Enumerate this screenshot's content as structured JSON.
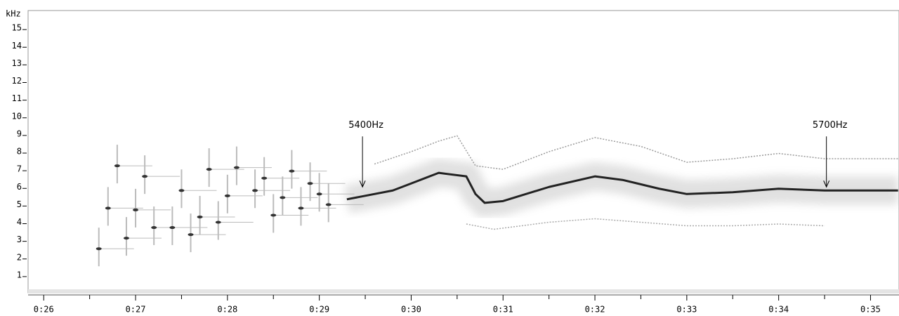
{
  "chart_data": {
    "type": "line",
    "y_label": "kHz",
    "xlim": [
      25.83,
      35.31
    ],
    "ylim": [
      0,
      16
    ],
    "xticks": [
      {
        "value": 26,
        "label": "0:26"
      },
      {
        "value": 27,
        "label": "0:27"
      },
      {
        "value": 28,
        "label": "0:28"
      },
      {
        "value": 29,
        "label": "0:29"
      },
      {
        "value": 30,
        "label": "0:30"
      },
      {
        "value": 31,
        "label": "0:31"
      },
      {
        "value": 32,
        "label": "0:32"
      },
      {
        "value": 33,
        "label": "0:33"
      },
      {
        "value": 34,
        "label": "0:34"
      },
      {
        "value": 35,
        "label": "0:35"
      }
    ],
    "yticks": [
      1,
      2,
      3,
      4,
      5,
      6,
      7,
      8,
      9,
      10,
      11,
      12,
      13,
      14,
      15
    ],
    "series": [
      {
        "color": "#222222",
        "marker": "line",
        "x": [
          29.3,
          29.5,
          29.8,
          30.0,
          30.3,
          30.6,
          30.7,
          30.8,
          31.0,
          31.5,
          32.0,
          32.3,
          32.7,
          33.0,
          33.5,
          34.0,
          34.5,
          35.0,
          35.3
        ],
        "values": [
          5.3,
          5.5,
          5.8,
          6.2,
          6.8,
          6.6,
          5.6,
          5.1,
          5.2,
          6.0,
          6.6,
          6.4,
          5.9,
          5.6,
          5.7,
          5.9,
          5.8,
          5.8,
          5.8
        ]
      },
      {
        "color": "#9a9a9a",
        "marker": "line",
        "x": [
          29.6,
          30.0,
          30.3,
          30.5,
          30.7,
          31.0,
          31.5,
          32.0,
          32.5,
          33.0,
          33.5,
          34.0,
          34.5,
          35.3
        ],
        "values": [
          7.3,
          8.0,
          8.6,
          8.9,
          7.2,
          7.0,
          8.0,
          8.8,
          8.3,
          7.4,
          7.6,
          7.9,
          7.6,
          7.6
        ]
      },
      {
        "color": "#aaaaaa",
        "marker": "line",
        "x": [
          30.6,
          30.9,
          31.5,
          32.0,
          32.5,
          33.0,
          33.5,
          34.0,
          34.5
        ],
        "values": [
          3.9,
          3.6,
          4.0,
          4.2,
          4.0,
          3.8,
          3.8,
          3.9,
          3.8
        ]
      },
      {
        "color": "#333333",
        "marker": "point",
        "x": [
          26.6,
          26.7,
          26.8,
          26.9,
          27.0,
          27.1,
          27.2,
          27.4,
          27.5,
          27.6,
          27.7,
          27.8,
          27.9,
          28.0,
          28.1,
          28.3,
          28.4,
          28.5,
          28.6,
          28.7,
          28.8,
          28.9,
          29.0,
          29.1
        ],
        "values": [
          2.5,
          4.8,
          7.2,
          3.1,
          4.7,
          6.6,
          3.7,
          3.7,
          5.8,
          3.3,
          4.3,
          7.0,
          4.0,
          5.5,
          7.1,
          5.8,
          6.5,
          4.4,
          5.4,
          6.9,
          4.8,
          6.2,
          5.6,
          5.0
        ]
      }
    ],
    "annotations": [
      {
        "text": "5400Hz",
        "x": 29.47,
        "y": 6.0
      },
      {
        "text": "5700Hz",
        "x": 34.52,
        "y": 6.0
      }
    ]
  }
}
